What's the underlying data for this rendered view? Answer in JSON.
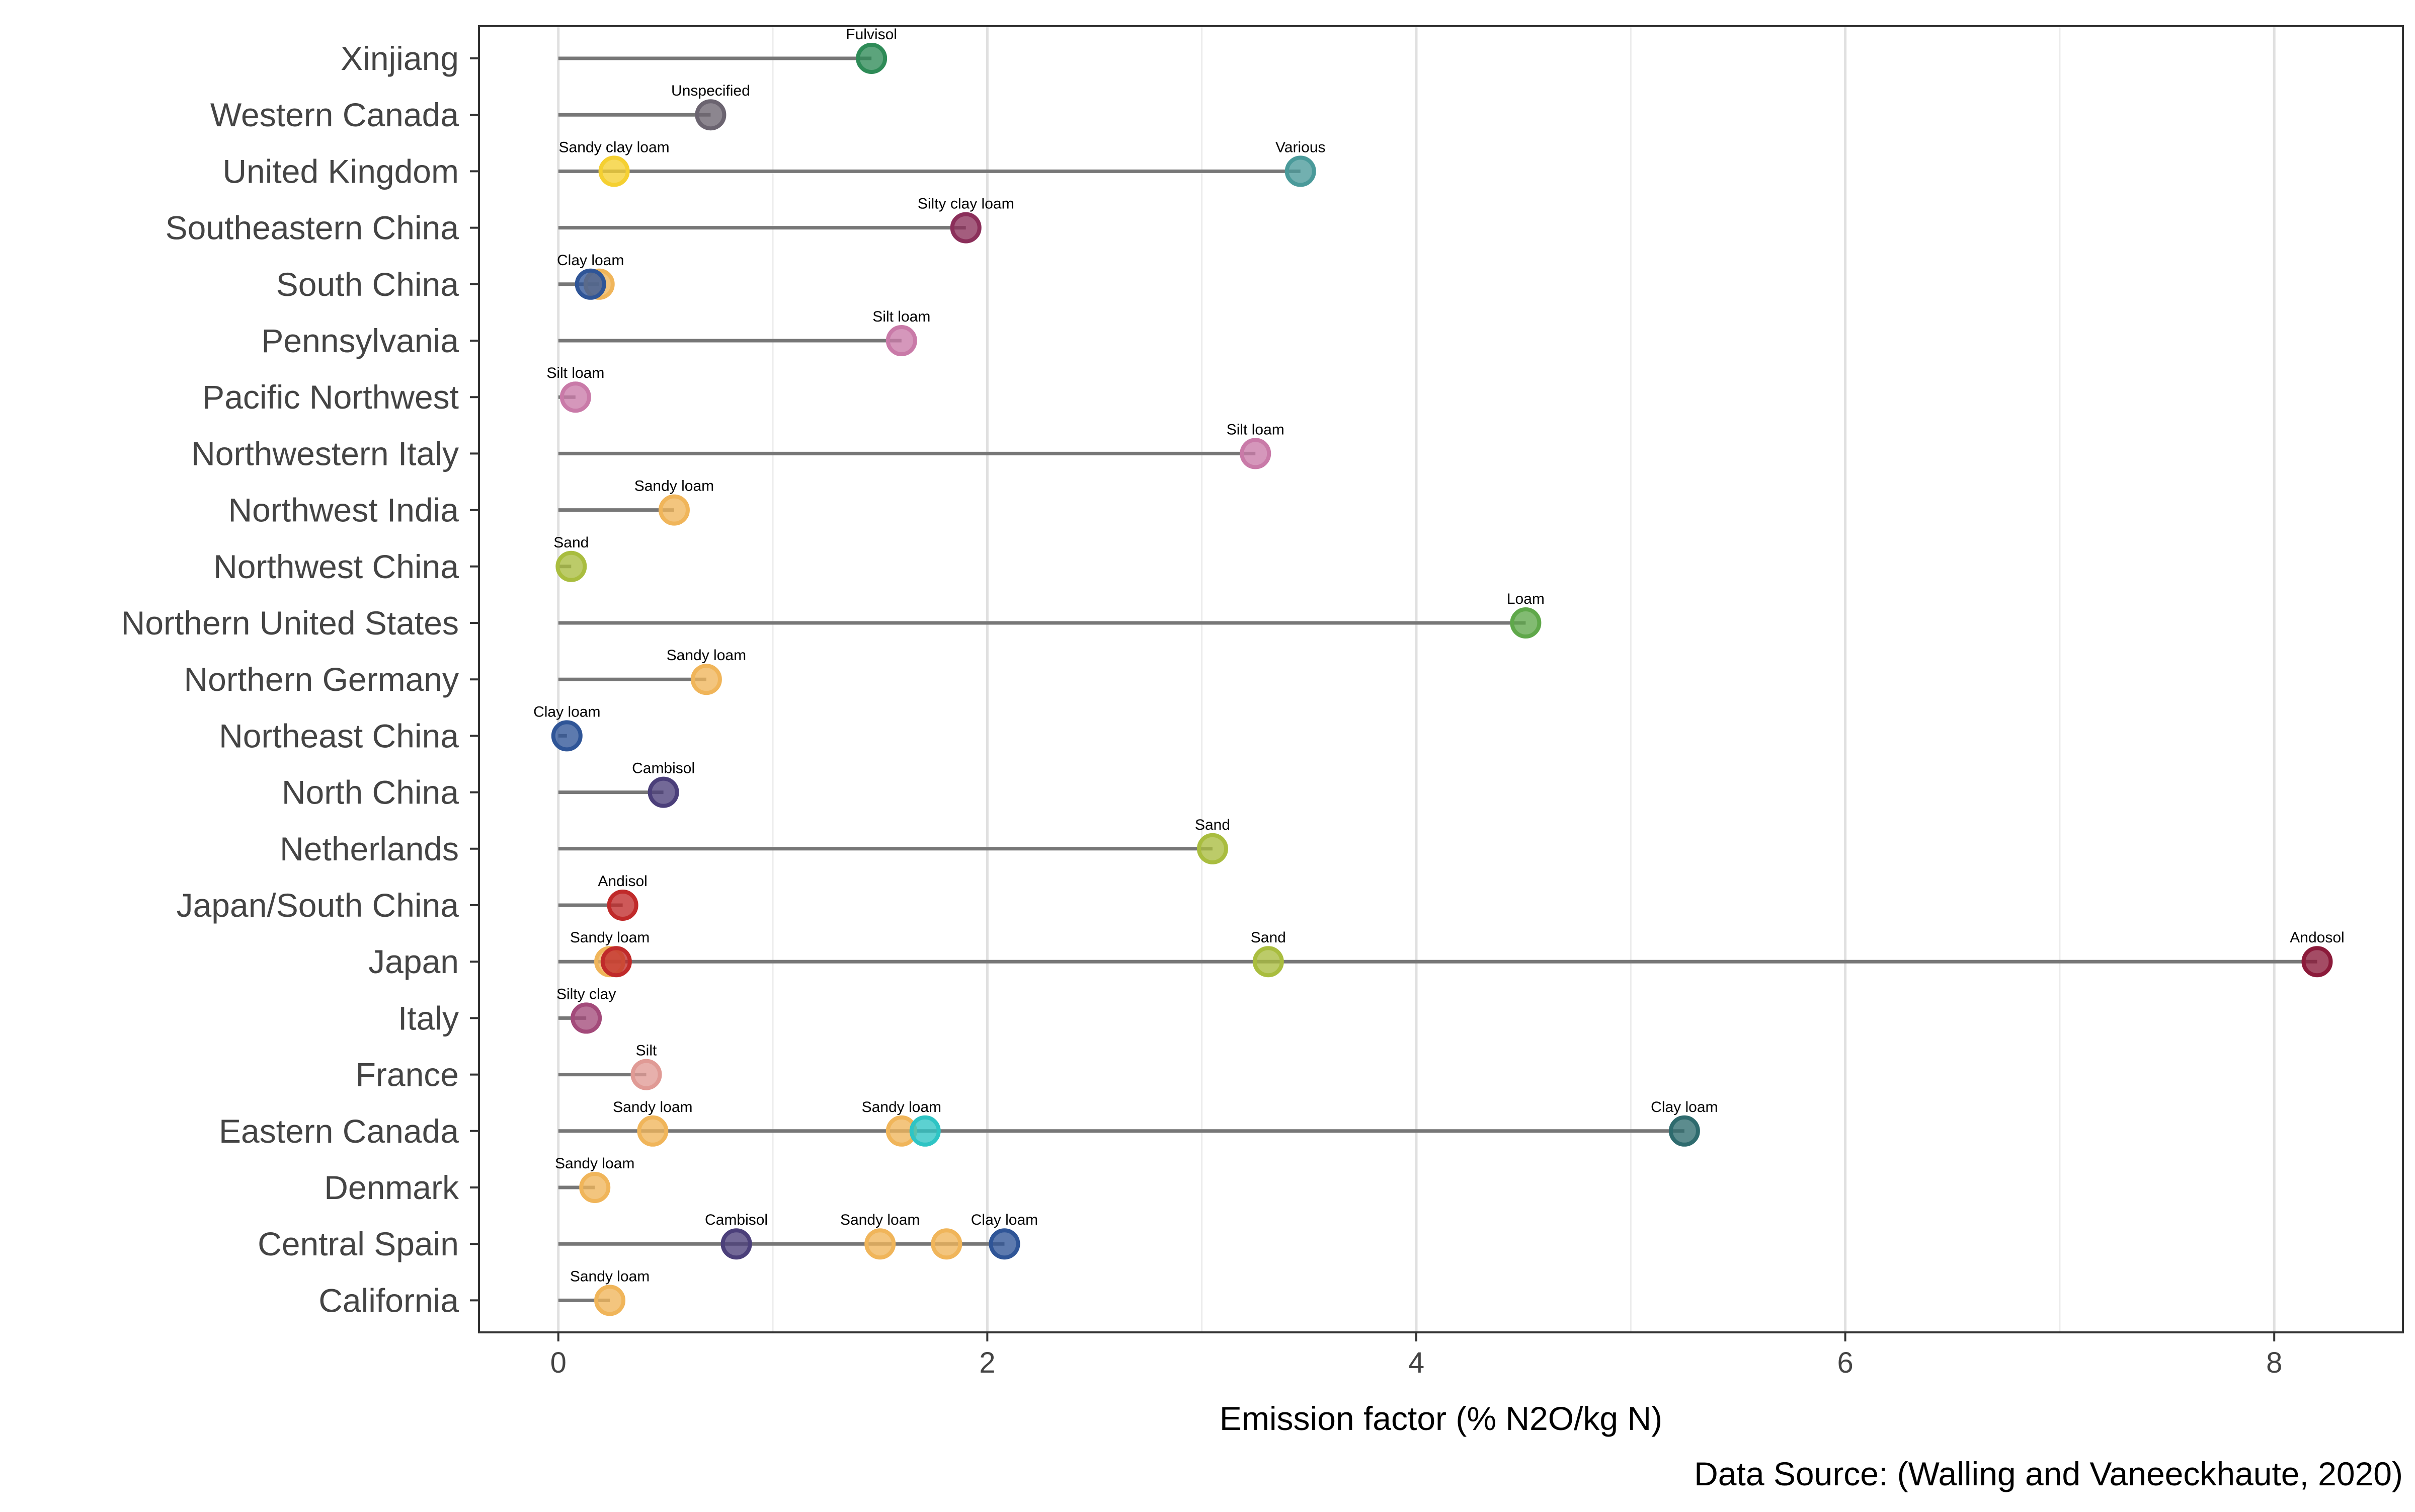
{
  "chart_data": {
    "type": "scatter",
    "subtype": "lollipop",
    "title": "",
    "xlabel": "Emission factor (% N2O/kg N)",
    "ylabel": "",
    "caption": "Data Source: (Walling and Vaneeckhaute, 2020)",
    "xlim": [
      -0.37,
      8.6
    ],
    "xticks": [
      0,
      2,
      4,
      6,
      8
    ],
    "grid": "vertical",
    "legend": "none",
    "colors": {
      "stem": "#777777",
      "Fulvisol": "#2e8b57",
      "Unspecified": "#6b6470",
      "Various": "#4a9a9a",
      "Sandy clay loam": "#f5d031",
      "Silty clay loam": "#8b2f5a",
      "Clay loam": "#2f5597",
      "Silt loam": "#c97aa8",
      "Sandy loam": "#f0b55a",
      "Sand": "#a9bd3f",
      "Loam": "#5fa84a",
      "Cambisol": "#4b3f7a",
      "Andisol": "#c02a2a",
      "Andosol": "#8b1a3a",
      "Silty clay": "#a34a7a",
      "Silt": "#e09a95",
      "Clay loam dark": "#2e6b6e",
      "Sandy loam teal": "#2ec4c4"
    },
    "categories": [
      "Xinjiang",
      "Western Canada",
      "United Kingdom",
      "Southeastern China",
      "South China",
      "Pennsylvania",
      "Pacific Northwest",
      "Northwestern Italy",
      "Northwest India",
      "Northwest China",
      "Northern United States",
      "Northern Germany",
      "Northeast China",
      "North China",
      "Netherlands",
      "Japan/South China",
      "Japan",
      "Italy",
      "France",
      "Eastern Canada",
      "Denmark",
      "Central Spain",
      "California"
    ],
    "points": [
      {
        "region": "Xinjiang",
        "value": 1.46,
        "soil": "Fulvisol",
        "color": "Fulvisol",
        "label": "Fulvisol"
      },
      {
        "region": "Western Canada",
        "value": 0.71,
        "soil": "Unspecified",
        "color": "Unspecified",
        "label": "Unspecified"
      },
      {
        "region": "United Kingdom",
        "value": 3.46,
        "soil": "Various",
        "color": "Various",
        "label": "Various"
      },
      {
        "region": "United Kingdom",
        "value": 0.26,
        "soil": "Sandy clay loam",
        "color": "Sandy clay loam",
        "label": "Sandy clay loam"
      },
      {
        "region": "Southeastern China",
        "value": 1.9,
        "soil": "Silty clay loam",
        "color": "Silty clay loam",
        "label": "Silty clay loam"
      },
      {
        "region": "South China",
        "value": 0.19,
        "soil": "Clay loam",
        "color": "Sandy loam",
        "label": ""
      },
      {
        "region": "South China",
        "value": 0.15,
        "soil": "Clay loam",
        "color": "Clay loam",
        "label": "Clay loam"
      },
      {
        "region": "Pennsylvania",
        "value": 1.6,
        "soil": "Silt loam",
        "color": "Silt loam",
        "label": "Silt loam"
      },
      {
        "region": "Pacific Northwest",
        "value": 0.08,
        "soil": "Silt loam",
        "color": "Silt loam",
        "label": "Silt loam"
      },
      {
        "region": "Northwestern Italy",
        "value": 3.25,
        "soil": "Silt loam",
        "color": "Silt loam",
        "label": "Silt loam"
      },
      {
        "region": "Northwest India",
        "value": 0.54,
        "soil": "Sandy loam",
        "color": "Sandy loam",
        "label": "Sandy loam"
      },
      {
        "region": "Northwest China",
        "value": 0.06,
        "soil": "Sand",
        "color": "Sand",
        "label": "Sand"
      },
      {
        "region": "Northern United States",
        "value": 4.51,
        "soil": "Loam",
        "color": "Loam",
        "label": "Loam"
      },
      {
        "region": "Northern Germany",
        "value": 0.69,
        "soil": "Sandy loam",
        "color": "Sandy loam",
        "label": "Sandy loam"
      },
      {
        "region": "Northeast China",
        "value": 0.04,
        "soil": "Clay loam",
        "color": "Clay loam",
        "label": "Clay loam"
      },
      {
        "region": "North China",
        "value": 0.49,
        "soil": "Cambisol",
        "color": "Cambisol",
        "label": "Cambisol"
      },
      {
        "region": "Netherlands",
        "value": 3.05,
        "soil": "Sand",
        "color": "Sand",
        "label": "Sand"
      },
      {
        "region": "Japan/South China",
        "value": 0.3,
        "soil": "Andisol",
        "color": "Andisol",
        "label": "Andisol"
      },
      {
        "region": "Japan",
        "value": 8.2,
        "soil": "Andosol",
        "color": "Andosol",
        "label": "Andosol"
      },
      {
        "region": "Japan",
        "value": 3.31,
        "soil": "Sand",
        "color": "Sand",
        "label": "Sand"
      },
      {
        "region": "Japan",
        "value": 0.24,
        "soil": "Sandy loam",
        "color": "Sandy loam",
        "label": "Sandy loam"
      },
      {
        "region": "Japan",
        "value": 0.27,
        "soil": "Andisol",
        "color": "Andisol",
        "label": ""
      },
      {
        "region": "Italy",
        "value": 0.13,
        "soil": "Silty clay",
        "color": "Silty clay",
        "label": "Silty clay"
      },
      {
        "region": "France",
        "value": 0.41,
        "soil": "Silt",
        "color": "Silt",
        "label": "Silt"
      },
      {
        "region": "Eastern Canada",
        "value": 5.25,
        "soil": "Clay loam",
        "color": "Clay loam dark",
        "label": "Clay loam"
      },
      {
        "region": "Eastern Canada",
        "value": 1.6,
        "soil": "Sandy loam",
        "color": "Sandy loam",
        "label": "Sandy loam"
      },
      {
        "region": "Eastern Canada",
        "value": 1.71,
        "soil": "Sandy loam",
        "color": "Sandy loam teal",
        "label": ""
      },
      {
        "region": "Eastern Canada",
        "value": 0.44,
        "soil": "Sandy loam",
        "color": "Sandy loam",
        "label": "Sandy loam"
      },
      {
        "region": "Denmark",
        "value": 0.17,
        "soil": "Sandy loam",
        "color": "Sandy loam",
        "label": "Sandy loam"
      },
      {
        "region": "Central Spain",
        "value": 2.08,
        "soil": "Clay loam",
        "color": "Clay loam",
        "label": "Clay loam"
      },
      {
        "region": "Central Spain",
        "value": 1.81,
        "soil": "Sandy loam",
        "color": "Sandy loam",
        "label": ""
      },
      {
        "region": "Central Spain",
        "value": 1.5,
        "soil": "Sandy loam",
        "color": "Sandy loam",
        "label": "Sandy loam"
      },
      {
        "region": "Central Spain",
        "value": 0.83,
        "soil": "Cambisol",
        "color": "Cambisol",
        "label": "Cambisol"
      },
      {
        "region": "California",
        "value": 0.24,
        "soil": "Sandy loam",
        "color": "Sandy loam",
        "label": "Sandy loam"
      }
    ]
  }
}
